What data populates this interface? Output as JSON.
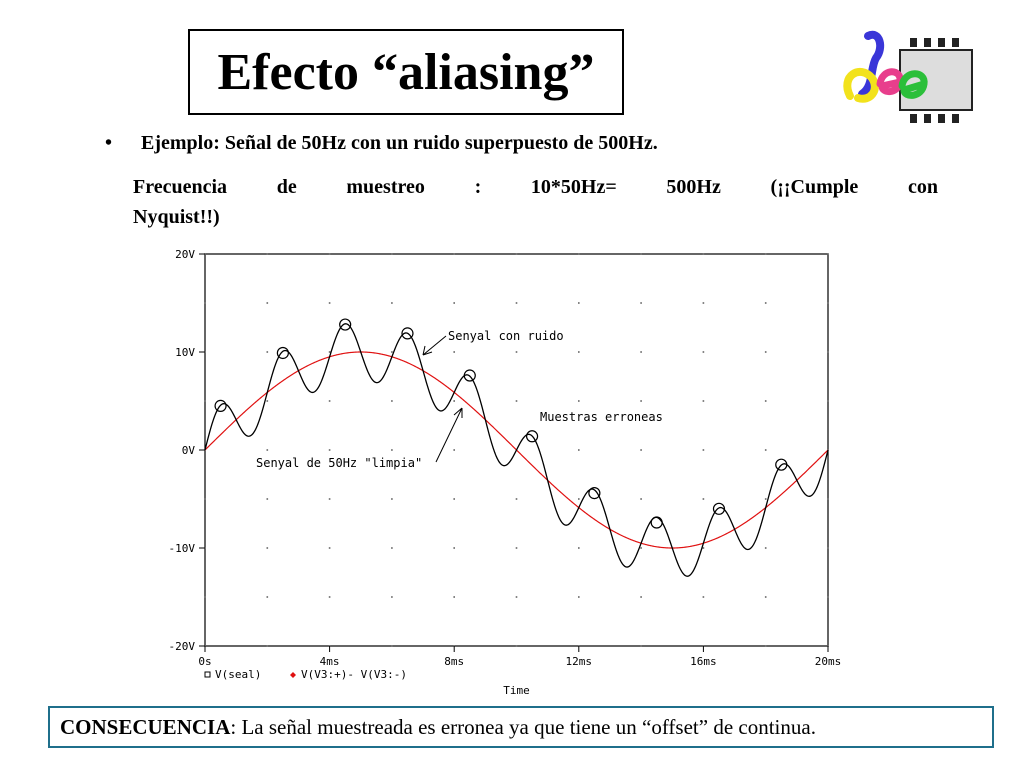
{
  "slide": {
    "title": "Efecto “aliasing”",
    "bullet": "•",
    "example": "Ejemplo: Señal de 50Hz con un ruido superpuesto de 500Hz.",
    "freq_parts": [
      "Frecuencia",
      "de",
      "muestreo",
      ":",
      "10*50Hz=",
      "500Hz",
      "(¡¡Cumple",
      "con"
    ],
    "freq_line2": "Nyquist!!)",
    "footer_label": "CONSECUENCIA",
    "footer_text": ": La señal muestreada es erronea ya que  tiene un “offset” de continua.",
    "logo_letters": "ee"
  },
  "colors": {
    "noisy_signal": "#000000",
    "clean_signal": "#e01010",
    "footer_border": "#1f6f8b",
    "logo_blue": "#3a36d8",
    "logo_yellow": "#f2e21c",
    "logo_pink": "#e83e8c",
    "logo_green": "#2bbf3a"
  },
  "chart_data": {
    "type": "line",
    "xlabel": "Time",
    "xlim": [
      0,
      20
    ],
    "ylim": [
      -20,
      20
    ],
    "x_unit": "ms",
    "xticks": [
      0,
      4,
      8,
      12,
      16,
      20
    ],
    "xtick_labels": [
      "0s",
      "4ms",
      "8ms",
      "12ms",
      "16ms",
      "20ms"
    ],
    "yticks": [
      20,
      10,
      0,
      -10,
      -20
    ],
    "ytick_labels": [
      "20V",
      "10V",
      "0V",
      "-10V",
      "-20V"
    ],
    "grid": "dotted",
    "legend": [
      "V(seal)",
      "V(V3:+)- V(V3:-)"
    ],
    "series": [
      {
        "name": "V(seal)",
        "function": "10*sin(2*pi*50*t) + 3*sin(2*pi*500*t)",
        "markers": "circle at sample points"
      },
      {
        "name": "V(V3:+)- V(V3:-)",
        "function": "10*sin(2*pi*50*t)"
      }
    ],
    "samples": {
      "x": [
        0.5,
        2.5,
        4.5,
        6.5,
        8.5,
        10.5,
        12.5,
        14.5,
        16.5,
        18.5
      ],
      "y": [
        4.5,
        9.9,
        12.8,
        11.9,
        7.6,
        1.4,
        -4.4,
        -7.4,
        -6.0,
        -1.5
      ]
    },
    "annotations": [
      "Senyal con ruido",
      "Muestras erroneas",
      "Senyal de 50Hz \"limpia\""
    ]
  }
}
